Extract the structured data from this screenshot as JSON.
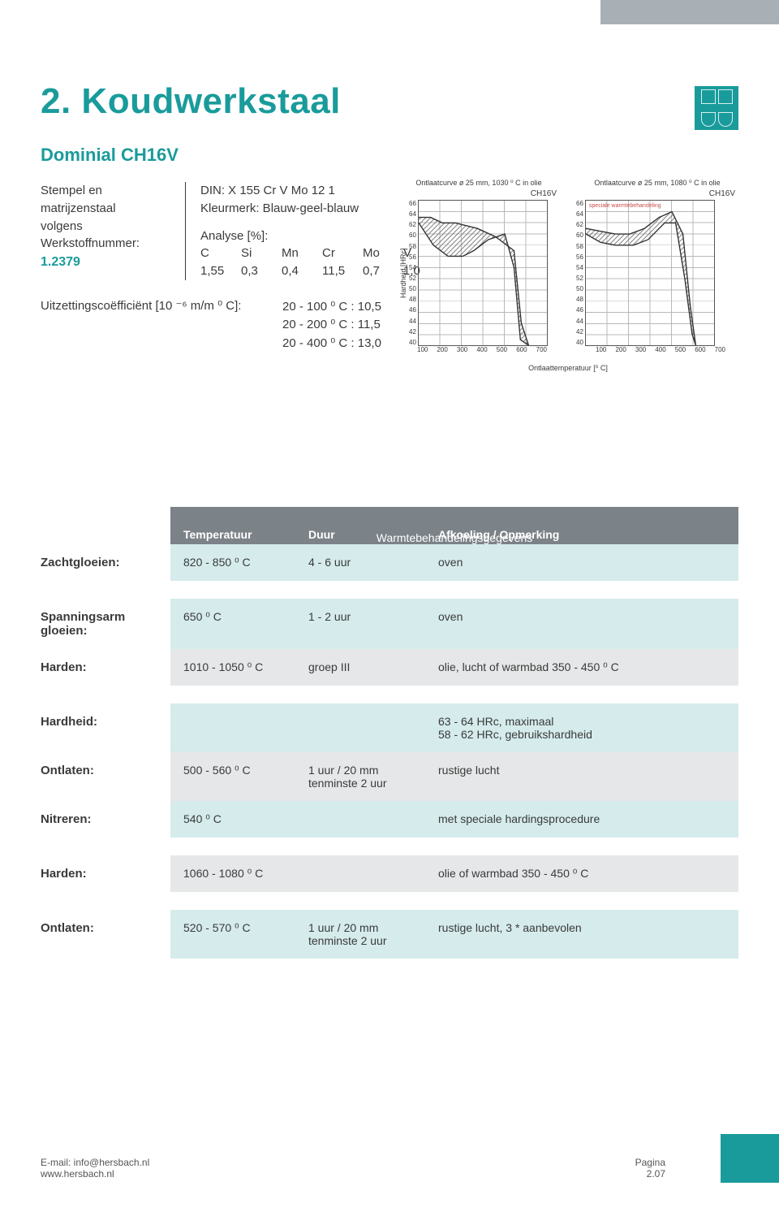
{
  "header": {
    "title": "2. Koudwerkstaal",
    "subtitle": "Dominial CH16V"
  },
  "meta_left": {
    "l1": "Stempel en",
    "l2": "matrijzenstaal",
    "l3": "volgens",
    "l4": "Werkstoffnummer:",
    "wn": "1.2379"
  },
  "meta_right": {
    "din": "DIN: X 155 Cr V Mo 12 1",
    "kleur": "Kleurmerk: Blauw-geel-blauw",
    "analy_label": "Analyse [%]:",
    "hdr": [
      "C",
      "Si",
      "Mn",
      "Cr",
      "Mo",
      "V"
    ],
    "vals": [
      "1,55",
      "0,3",
      "0,4",
      "11,5",
      "0,7",
      "1,0"
    ]
  },
  "coef": {
    "label": "Uitzettingscoëfficiënt [10 ⁻⁶ m/m ⁰ C]:",
    "rows": [
      "20 - 100 ⁰ C  :  10,5",
      "20 - 200 ⁰ C  :  11,5",
      "20 - 400 ⁰ C  :  13,0"
    ]
  },
  "charts": {
    "ylabel": "Hardheid [HRc]",
    "xlabel": "Ontlaattemperatuur [⁰ C]",
    "yticks": [
      "66",
      "64",
      "62",
      "60",
      "58",
      "56",
      "54",
      "52",
      "50",
      "48",
      "46",
      "44",
      "42",
      "40"
    ],
    "xticks": [
      "100",
      "200",
      "300",
      "400",
      "500",
      "600",
      "700"
    ],
    "line_color": "#333333",
    "hatch_color": "#666666",
    "grid_color": "#b8b8b8",
    "left": {
      "title": "Ontlaatcurve ø 25 mm, 1030 ⁰ C in olie",
      "label": "CH16V",
      "upper_path_pts": [
        [
          0,
          63
        ],
        [
          65,
          63
        ],
        [
          130,
          62
        ],
        [
          200,
          62
        ],
        [
          260,
          61.5
        ],
        [
          320,
          61
        ],
        [
          420,
          59.5
        ],
        [
          520,
          57
        ],
        [
          560,
          44
        ],
        [
          600,
          40
        ]
      ],
      "lower_path_pts": [
        [
          0,
          62
        ],
        [
          80,
          58
        ],
        [
          160,
          56
        ],
        [
          240,
          56
        ],
        [
          300,
          57
        ],
        [
          380,
          59
        ],
        [
          470,
          60
        ],
        [
          520,
          54
        ],
        [
          555,
          41
        ],
        [
          600,
          40
        ]
      ]
    },
    "right": {
      "title": "Ontlaatcurve ø 25 mm, 1080 ⁰ C in olie",
      "label": "CH16V",
      "annot": "speciale warmtebehandeling",
      "upper_path_pts": [
        [
          0,
          61
        ],
        [
          80,
          60.5
        ],
        [
          160,
          60
        ],
        [
          240,
          60
        ],
        [
          320,
          61
        ],
        [
          400,
          63
        ],
        [
          470,
          64
        ],
        [
          530,
          60
        ],
        [
          570,
          47
        ],
        [
          600,
          40
        ]
      ],
      "lower_path_pts": [
        [
          0,
          60
        ],
        [
          80,
          58.5
        ],
        [
          160,
          58
        ],
        [
          260,
          58
        ],
        [
          340,
          59
        ],
        [
          430,
          62
        ],
        [
          490,
          62
        ],
        [
          540,
          52
        ],
        [
          580,
          42
        ],
        [
          600,
          40
        ]
      ]
    }
  },
  "table": {
    "header_title": "Warmtebehandelingsgegevens",
    "col1": "Temperatuur",
    "col2": "Duur",
    "col3": "Afkoeling / Opmerking",
    "rows": [
      {
        "label": "Zachtgloeien:",
        "bg": "blue",
        "c1": "820 - 850 ⁰ C",
        "c2": "4 - 6 uur",
        "c3": "oven"
      },
      {
        "spacer": true
      },
      {
        "label": "Spanningsarm gloeien:",
        "bg": "blue",
        "c1": "650 ⁰ C",
        "c2": "1 - 2 uur",
        "c3": "oven"
      },
      {
        "label": "Harden:",
        "bg": "gray",
        "c1": "1010 - 1050 ⁰ C",
        "c2": "groep III",
        "c3": "olie, lucht of warmbad 350 - 450 ⁰ C"
      },
      {
        "spacer": true
      },
      {
        "label": "Hardheid:",
        "bg": "blue",
        "c1": "",
        "c2": "",
        "c3": "63 - 64 HRc, maximaal\n58 - 62 HRc, gebruikshardheid"
      },
      {
        "label": "Ontlaten:",
        "bg": "gray",
        "c1": "500 - 560 ⁰ C",
        "c2": "1 uur / 20 mm\ntenminste 2 uur",
        "c3": "rustige lucht"
      },
      {
        "label": "Nitreren:",
        "bg": "blue",
        "c1": "540 ⁰ C",
        "c2": "",
        "c3": "met speciale hardingsprocedure"
      },
      {
        "spacer": true
      },
      {
        "label": "Harden:",
        "bg": "gray",
        "c1": "1060 - 1080 ⁰ C",
        "c2": "",
        "c3": "olie of warmbad 350 - 450 ⁰ C"
      },
      {
        "spacer": true
      },
      {
        "label": "Ontlaten:",
        "bg": "blue",
        "c1": "520 - 570 ⁰ C",
        "c2": "1 uur / 20 mm\ntenminste 2 uur",
        "c3": "rustige lucht, 3 * aanbevolen"
      }
    ]
  },
  "footer": {
    "email": "E-mail: info@hersbach.nl",
    "web": "www.hersbach.nl",
    "pag_label": "Pagina",
    "pag_num": "2.07"
  }
}
